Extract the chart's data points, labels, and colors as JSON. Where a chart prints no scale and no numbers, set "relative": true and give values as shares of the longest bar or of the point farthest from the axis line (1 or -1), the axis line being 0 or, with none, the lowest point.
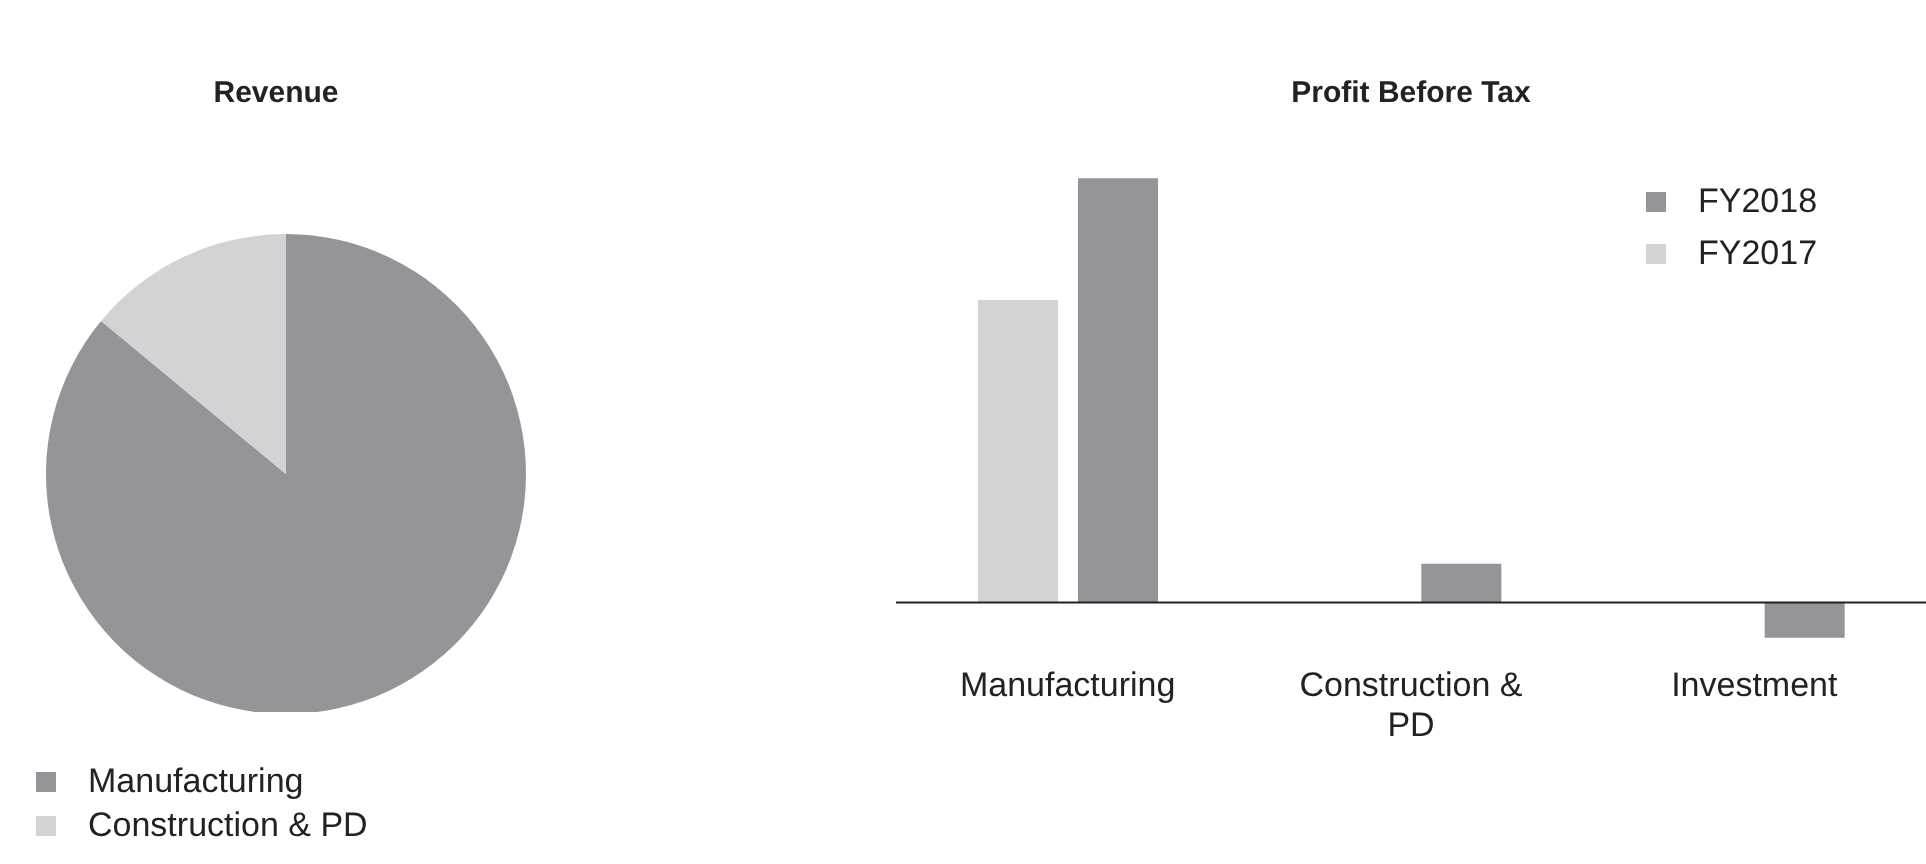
{
  "chart_data": [
    {
      "type": "pie",
      "title": "Revenue",
      "categories": [
        "Manufacturing",
        "Construction & PD"
      ],
      "values": [
        86,
        14
      ],
      "colors": [
        "#939598",
        "#d1d3d4"
      ],
      "legend": "bottom"
    },
    {
      "type": "bar",
      "title": "Profit Before Tax",
      "categories": [
        "Manufacturing",
        "Construction & PD",
        "Investment"
      ],
      "relative": true,
      "legend": "top right",
      "series": [
        {
          "name": "FY2017",
          "color": "#d1d3d4",
          "values": [
            0.713,
            null,
            null
          ]
        },
        {
          "name": "FY2018",
          "color": "#939598",
          "values": [
            1,
            0.091,
            -0.083
          ]
        }
      ]
    }
  ]
}
